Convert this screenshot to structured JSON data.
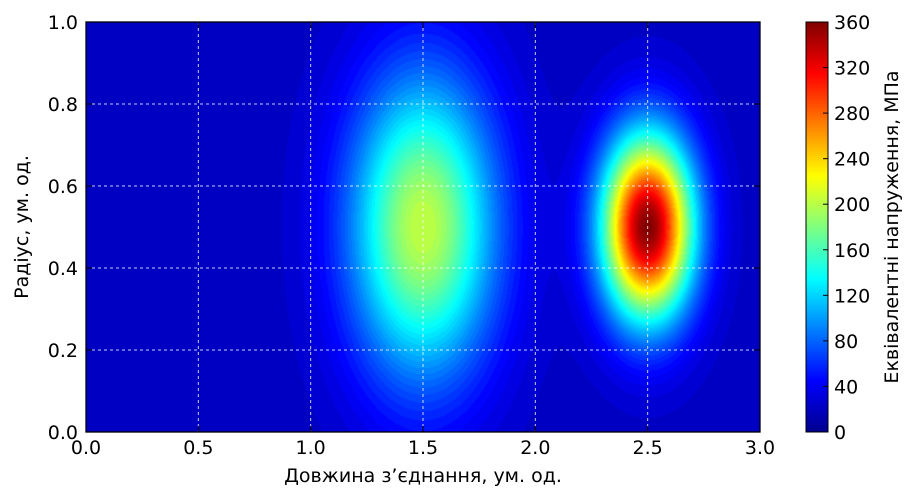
{
  "chart_data": {
    "type": "heatmap",
    "title": "",
    "xlabel": "Довжина з’єднання, ум. од.",
    "ylabel": "Радіус, ум. од.",
    "xlim": [
      0.0,
      3.0
    ],
    "ylim": [
      0.0,
      1.0
    ],
    "x_ticks": [
      "0.0",
      "0.5",
      "1.0",
      "1.5",
      "2.0",
      "2.5",
      "3.0"
    ],
    "y_ticks": [
      "0.0",
      "0.2",
      "0.4",
      "0.6",
      "0.8",
      "1.0"
    ],
    "grid": true,
    "colormap": "jet",
    "colorbar": {
      "label": "Еквівалентні напруження, МПа",
      "min": 0,
      "max": 360,
      "ticks": [
        "0",
        "40",
        "80",
        "120",
        "160",
        "200",
        "240",
        "280",
        "320",
        "360"
      ]
    },
    "peaks": [
      {
        "x": 1.5,
        "y": 0.5,
        "value": 190
      },
      {
        "x": 2.5,
        "y": 0.5,
        "value": 355
      }
    ]
  }
}
